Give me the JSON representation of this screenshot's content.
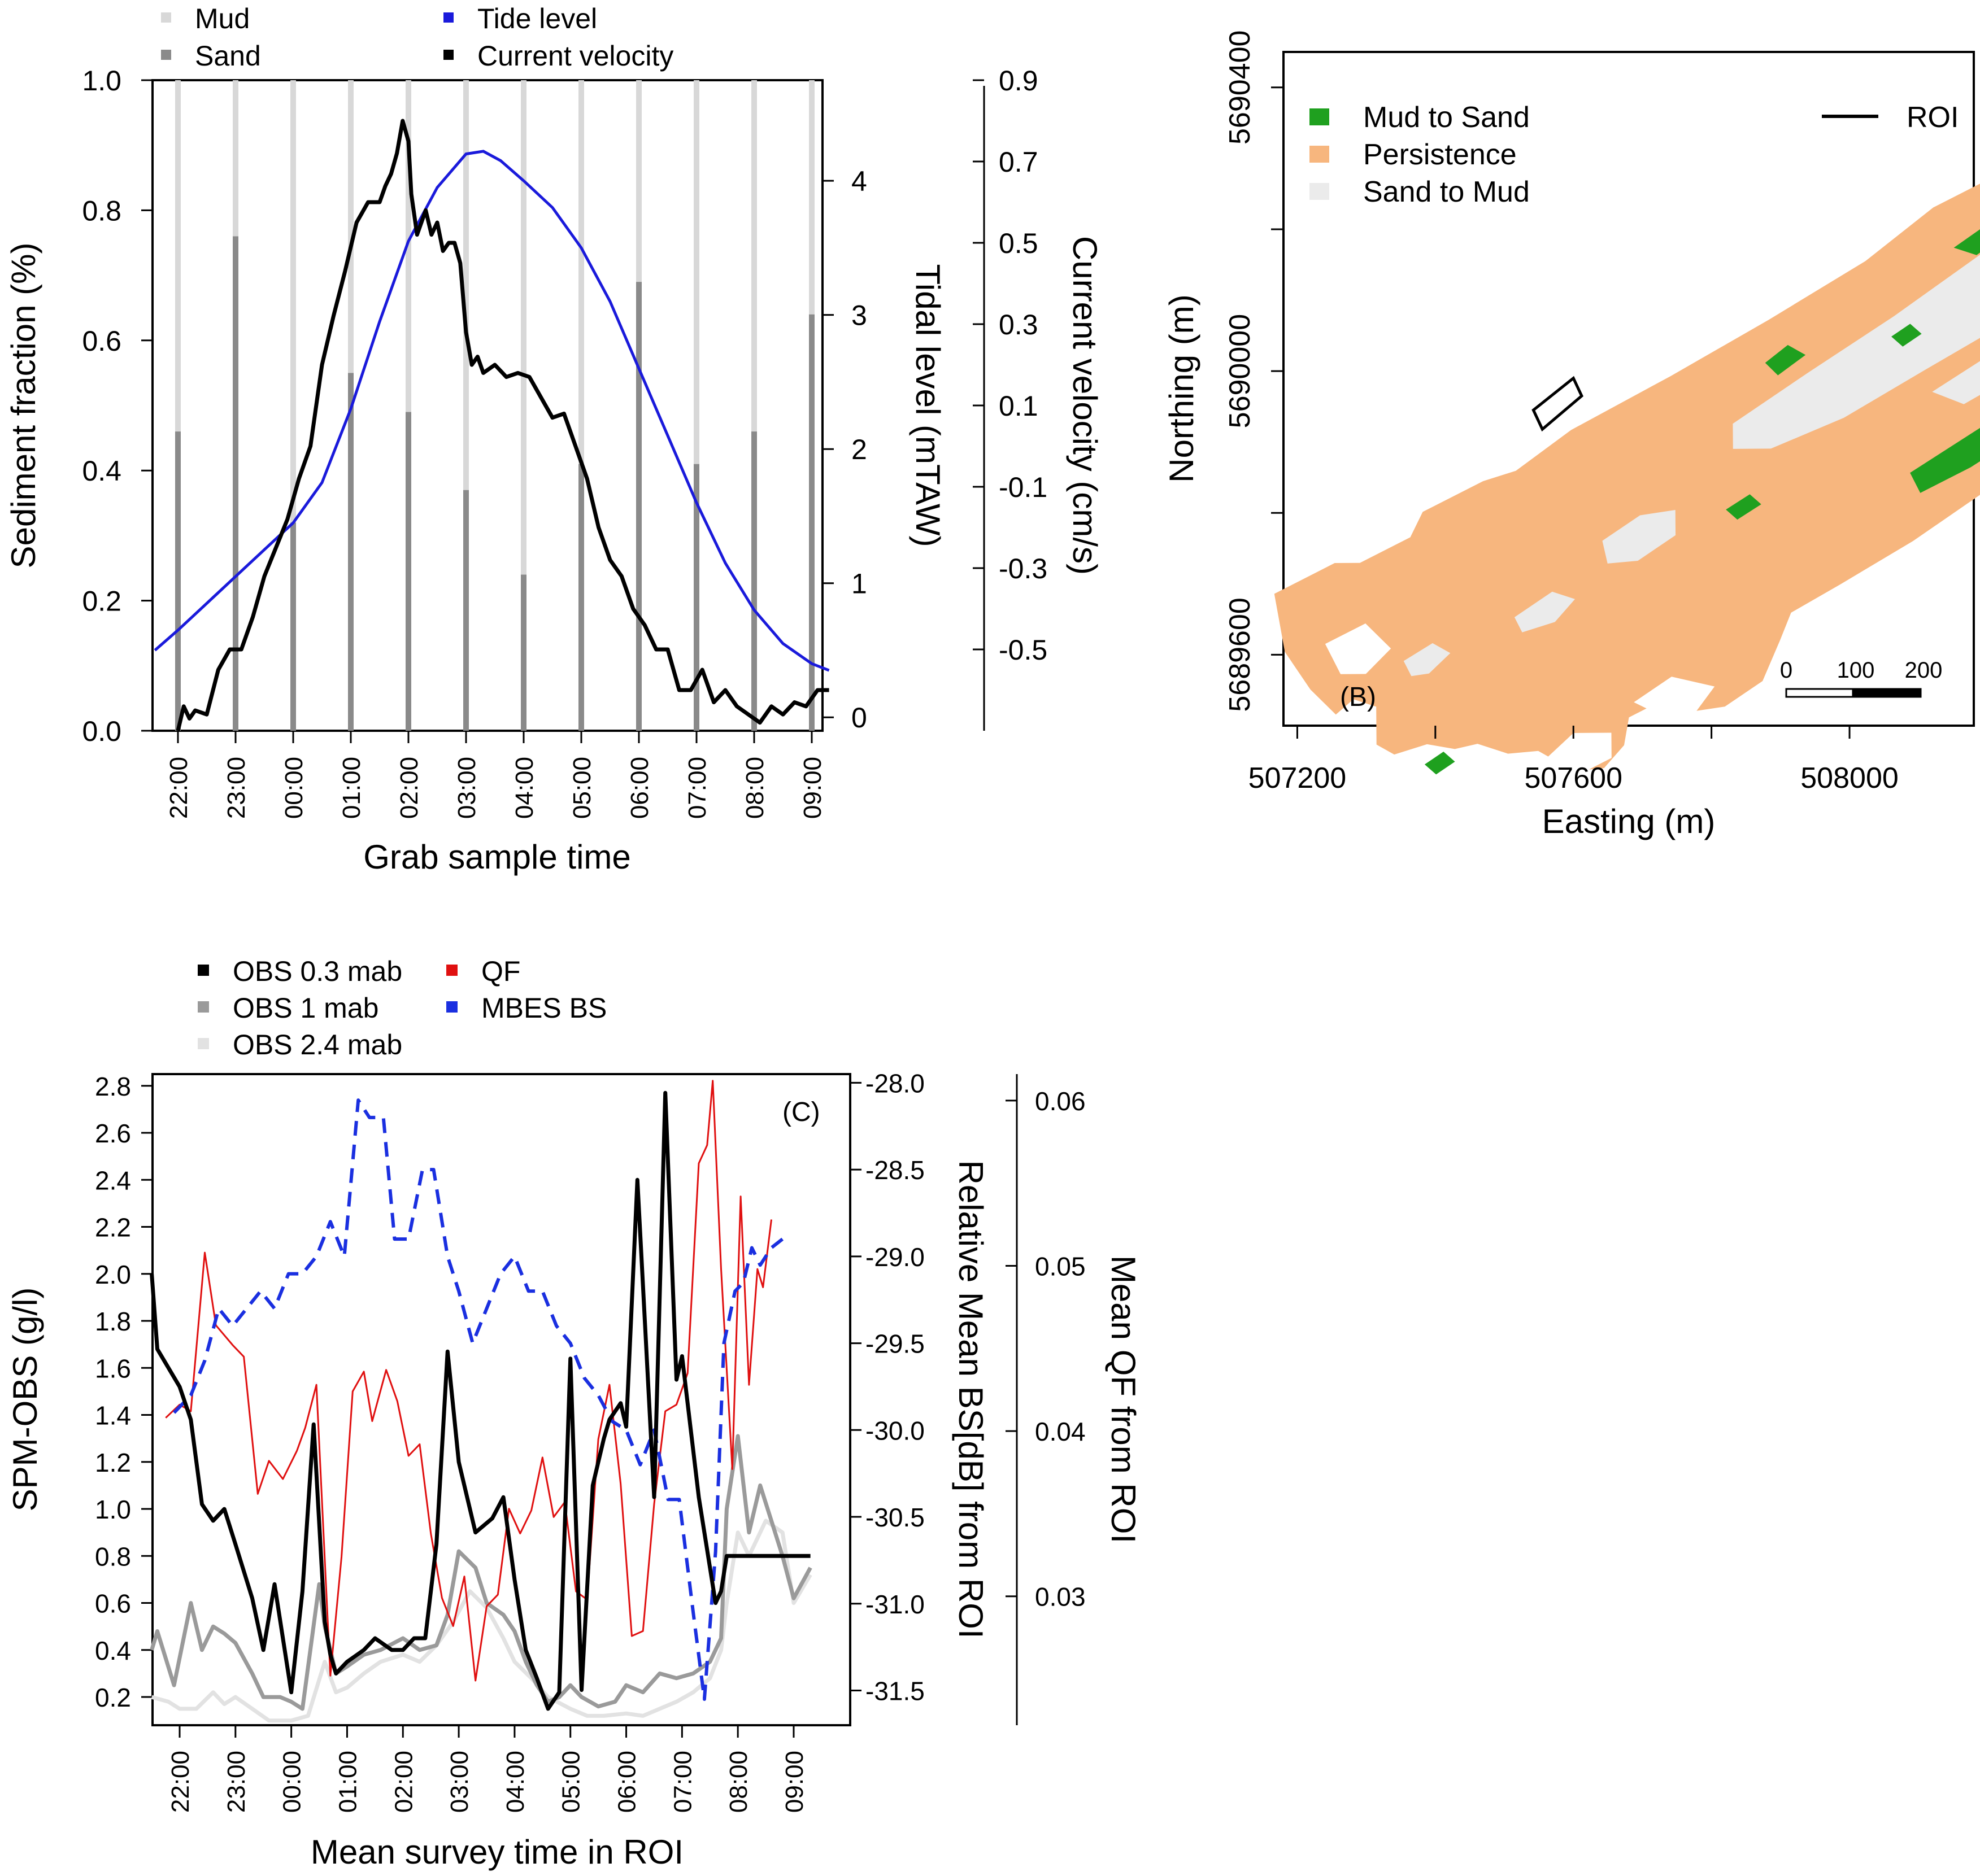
{
  "colors": {
    "mud": "#d8d8d8",
    "sand": "#8a8a8a",
    "tide": "#1a1adb",
    "current": "#000000",
    "mud_to_sand": "#1fa01f",
    "persistence": "#f7b67e",
    "sand_to_mud": "#ebebeb",
    "obs03": "#000000",
    "obs1": "#9a9a9a",
    "obs24": "#e2e2e2",
    "qf": "#e01010",
    "mbes": "#1a2fe0"
  },
  "chart_data": [
    {
      "id": "A",
      "type": "bar+line",
      "xlabel": "Grab sample time",
      "ylabel": "Sediment fraction (%)",
      "ylabel_tide": "Tidal level (mTAW)",
      "ylabel_current": "Current velocity (cm/s)",
      "x_ticks": [
        "22:00",
        "23:00",
        "00:00",
        "01:00",
        "02:00",
        "03:00",
        "04:00",
        "05:00",
        "06:00",
        "07:00",
        "08:00",
        "09:00"
      ],
      "y_ticks": [
        "0.0",
        "0.2",
        "0.4",
        "0.6",
        "0.8",
        "1.0"
      ],
      "tide_ticks": [
        "0",
        "1",
        "2",
        "3",
        "4"
      ],
      "current_ticks": [
        "-0.5",
        "-0.3",
        "-0.1",
        "0.1",
        "0.3",
        "0.5",
        "0.7",
        "0.9"
      ],
      "ylim": [
        0,
        1
      ],
      "tide_lim": [
        -0.1,
        4.75
      ],
      "current_lim": [
        -0.7,
        0.9
      ],
      "legend": [
        "Mud",
        "Sand",
        "Tide level",
        "Current velocity"
      ],
      "bar_times": [
        22.0,
        23.0,
        24.0,
        25.0,
        26.0,
        27.0,
        28.0,
        29.0,
        30.0,
        31.0,
        32.0,
        33.0
      ],
      "sand_fraction": [
        0.46,
        0.76,
        0.32,
        0.55,
        0.49,
        0.37,
        0.24,
        0.41,
        0.69,
        0.41,
        0.46,
        0.64
      ],
      "tide_level": {
        "t": [
          21.6,
          22.0,
          22.5,
          23.0,
          23.5,
          24.0,
          24.5,
          25.0,
          25.5,
          26.0,
          26.5,
          27.0,
          27.3,
          27.6,
          28.0,
          28.5,
          29.0,
          29.5,
          30.0,
          30.5,
          31.0,
          31.5,
          32.0,
          32.5,
          33.0,
          33.3
        ],
        "v": [
          0.5,
          0.65,
          0.85,
          1.05,
          1.25,
          1.45,
          1.75,
          2.3,
          2.95,
          3.55,
          3.95,
          4.2,
          4.22,
          4.15,
          4.0,
          3.8,
          3.5,
          3.1,
          2.6,
          2.1,
          1.6,
          1.15,
          0.8,
          0.55,
          0.4,
          0.35
        ]
      },
      "current_velocity": {
        "t": [
          22.0,
          22.1,
          22.2,
          22.3,
          22.5,
          22.7,
          22.9,
          23.1,
          23.3,
          23.5,
          23.7,
          23.9,
          24.1,
          24.3,
          24.5,
          24.7,
          24.9,
          25.1,
          25.3,
          25.5,
          25.6,
          25.7,
          25.8,
          25.9,
          26.0,
          26.05,
          26.15,
          26.3,
          26.4,
          26.5,
          26.6,
          26.7,
          26.8,
          26.9,
          27.0,
          27.1,
          27.2,
          27.3,
          27.5,
          27.7,
          27.9,
          28.1,
          28.3,
          28.5,
          28.7,
          28.9,
          29.1,
          29.3,
          29.5,
          29.7,
          29.9,
          30.1,
          30.3,
          30.5,
          30.7,
          30.9,
          31.1,
          31.3,
          31.5,
          31.7,
          31.9,
          32.1,
          32.3,
          32.5,
          32.7,
          32.9,
          33.1,
          33.3
        ],
        "v": [
          -0.7,
          -0.64,
          -0.67,
          -0.65,
          -0.66,
          -0.55,
          -0.5,
          -0.5,
          -0.42,
          -0.32,
          -0.25,
          -0.18,
          -0.08,
          0.0,
          0.2,
          0.32,
          0.43,
          0.55,
          0.6,
          0.6,
          0.64,
          0.67,
          0.72,
          0.8,
          0.75,
          0.62,
          0.52,
          0.58,
          0.52,
          0.55,
          0.48,
          0.5,
          0.5,
          0.45,
          0.28,
          0.2,
          0.22,
          0.18,
          0.2,
          0.17,
          0.18,
          0.17,
          0.12,
          0.07,
          0.08,
          0.0,
          -0.08,
          -0.2,
          -0.28,
          -0.32,
          -0.4,
          -0.44,
          -0.5,
          -0.5,
          -0.6,
          -0.6,
          -0.55,
          -0.63,
          -0.6,
          -0.64,
          -0.66,
          -0.68,
          -0.64,
          -0.66,
          -0.63,
          -0.64,
          -0.6,
          -0.6
        ]
      }
    },
    {
      "id": "B",
      "type": "map",
      "panel_label": "(B)",
      "xlabel": "Easting (m)",
      "ylabel": "Northing (m)",
      "x_ticks": [
        "507200",
        "507600",
        "508000"
      ],
      "y_ticks": [
        "5689600",
        "5690000",
        "5690400"
      ],
      "xlim": [
        507180,
        508180
      ],
      "ylim": [
        5689500,
        5690450
      ],
      "legend": [
        "Mud to Sand",
        "Persistence",
        "Sand to Mud"
      ],
      "roi_label": "ROI",
      "scalebar_labels": [
        "0",
        "100",
        "200"
      ],
      "roi_polygon": {
        "e": [
          507542,
          507600,
          507612,
          507555
        ],
        "n": [
          5689945,
          5689990,
          5689965,
          5689918
        ]
      }
    },
    {
      "id": "C",
      "type": "line",
      "panel_label": "(C)",
      "xlabel": "Mean survey time in ROI",
      "ylabel": "SPM-OBS (g/l)",
      "ylabel_bs": "Relative Mean BS[dB] from ROI",
      "ylabel_qf": "Mean QF from ROI",
      "x_ticks": [
        "22:00",
        "23:00",
        "00:00",
        "01:00",
        "02:00",
        "03:00",
        "04:00",
        "05:00",
        "06:00",
        "07:00",
        "08:00",
        "09:00"
      ],
      "y_ticks": [
        "0.2",
        "0.4",
        "0.6",
        "0.8",
        "1.0",
        "1.2",
        "1.4",
        "1.6",
        "1.8",
        "2.0",
        "2.2",
        "2.4",
        "2.6",
        "2.8"
      ],
      "bs_ticks": [
        "-28.0",
        "-28.5",
        "-29.0",
        "-29.5",
        "-30.0",
        "-30.5",
        "-31.0",
        "-31.5"
      ],
      "qf_ticks": [
        "0.03",
        "0.04",
        "0.05",
        "0.06"
      ],
      "ylim": [
        0.08,
        2.85
      ],
      "bs_lim": [
        -31.7,
        -27.95
      ],
      "qf_lim": [
        0.0222,
        0.0616
      ],
      "legend": [
        "OBS 0.3 mab",
        "QF",
        "OBS 1 mab",
        "MBES BS",
        "OBS 2.4 mab"
      ],
      "series": [
        {
          "name": "OBS 0.3 mab",
          "t": [
            21.5,
            21.6,
            22.0,
            22.2,
            22.4,
            22.6,
            22.8,
            23.0,
            23.3,
            23.5,
            23.7,
            24.0,
            24.2,
            24.4,
            24.6,
            24.7,
            24.8,
            25.0,
            25.3,
            25.5,
            25.8,
            26.0,
            26.2,
            26.4,
            26.6,
            26.8,
            27.0,
            27.3,
            27.6,
            27.8,
            28.0,
            28.2,
            28.4,
            28.6,
            28.8,
            29.0,
            29.2,
            29.4,
            29.6,
            29.7,
            29.9,
            30.0,
            30.2,
            30.5,
            30.7,
            30.9,
            31.0,
            31.1,
            31.3,
            31.4,
            31.5,
            31.6,
            31.7,
            31.8,
            32.0,
            32.2,
            32.4,
            32.6,
            32.8,
            33.0,
            33.3
          ],
          "v": [
            2.0,
            1.68,
            1.52,
            1.38,
            1.02,
            0.95,
            1.0,
            0.85,
            0.62,
            0.4,
            0.68,
            0.22,
            0.65,
            1.36,
            0.52,
            0.38,
            0.3,
            0.35,
            0.4,
            0.45,
            0.4,
            0.4,
            0.45,
            0.45,
            0.85,
            1.67,
            1.2,
            0.9,
            0.96,
            1.05,
            0.7,
            0.4,
            0.28,
            0.15,
            0.22,
            1.64,
            0.23,
            1.1,
            1.3,
            1.38,
            1.45,
            1.35,
            2.4,
            1.05,
            2.77,
            1.55,
            1.65,
            1.45,
            1.05,
            0.9,
            0.75,
            0.6,
            0.65,
            0.8,
            0.8,
            0.8,
            0.8,
            0.8,
            0.8,
            0.8,
            0.8
          ]
        },
        {
          "name": "OBS 1 mab",
          "t": [
            21.5,
            21.6,
            21.9,
            22.2,
            22.4,
            22.6,
            22.8,
            23.0,
            23.3,
            23.5,
            23.8,
            24.0,
            24.2,
            24.5,
            24.6,
            24.8,
            25.0,
            25.3,
            25.6,
            26.0,
            26.3,
            26.6,
            26.8,
            27.0,
            27.3,
            27.5,
            27.8,
            28.0,
            28.2,
            28.4,
            28.6,
            28.8,
            29.0,
            29.2,
            29.5,
            29.8,
            30.0,
            30.3,
            30.6,
            30.9,
            31.2,
            31.5,
            31.7,
            31.8,
            32.0,
            32.2,
            32.4,
            32.6,
            32.8,
            33.0,
            33.3
          ],
          "v": [
            0.4,
            0.48,
            0.25,
            0.6,
            0.4,
            0.5,
            0.47,
            0.43,
            0.3,
            0.2,
            0.2,
            0.18,
            0.15,
            0.68,
            0.5,
            0.3,
            0.33,
            0.38,
            0.4,
            0.45,
            0.4,
            0.42,
            0.55,
            0.82,
            0.75,
            0.6,
            0.55,
            0.48,
            0.35,
            0.25,
            0.18,
            0.2,
            0.25,
            0.2,
            0.16,
            0.18,
            0.25,
            0.22,
            0.3,
            0.28,
            0.3,
            0.35,
            0.45,
            1.0,
            1.31,
            0.9,
            1.1,
            0.95,
            0.8,
            0.62,
            0.75
          ]
        },
        {
          "name": "OBS 2.4 mab",
          "t": [
            21.5,
            21.8,
            22.0,
            22.3,
            22.6,
            22.8,
            23.0,
            23.3,
            23.6,
            24.0,
            24.3,
            24.6,
            24.8,
            25.0,
            25.3,
            25.6,
            26.0,
            26.3,
            26.6,
            26.9,
            27.2,
            27.5,
            27.8,
            28.0,
            28.3,
            28.6,
            29.0,
            29.3,
            29.6,
            30.0,
            30.3,
            30.6,
            30.9,
            31.2,
            31.5,
            31.7,
            31.8,
            32.0,
            32.2,
            32.5,
            32.8,
            33.0,
            33.3
          ],
          "v": [
            0.2,
            0.18,
            0.15,
            0.15,
            0.22,
            0.17,
            0.2,
            0.15,
            0.1,
            0.1,
            0.12,
            0.35,
            0.22,
            0.24,
            0.3,
            0.35,
            0.38,
            0.35,
            0.42,
            0.52,
            0.65,
            0.58,
            0.45,
            0.35,
            0.28,
            0.2,
            0.15,
            0.12,
            0.12,
            0.13,
            0.12,
            0.15,
            0.18,
            0.22,
            0.28,
            0.4,
            0.6,
            0.9,
            0.8,
            0.95,
            0.9,
            0.6,
            0.72
          ]
        },
        {
          "name": "QF",
          "t": [
            21.75,
            22.0,
            22.2,
            22.45,
            22.65,
            22.95,
            23.15,
            23.4,
            23.6,
            23.85,
            24.1,
            24.25,
            24.45,
            24.7,
            24.9,
            25.1,
            25.3,
            25.45,
            25.7,
            25.9,
            26.1,
            26.3,
            26.5,
            26.7,
            26.9,
            27.1,
            27.3,
            27.5,
            27.7,
            27.9,
            28.1,
            28.3,
            28.5,
            28.7,
            28.9,
            29.1,
            29.3,
            29.5,
            29.7,
            29.9,
            30.1,
            30.3,
            30.5,
            30.7,
            30.9,
            31.1,
            31.3,
            31.45,
            31.55,
            31.7,
            31.9,
            32.05,
            32.2,
            32.35,
            32.45,
            32.6
          ],
          "v": [
            0.0408,
            0.0416,
            0.0412,
            0.0508,
            0.0464,
            0.0452,
            0.0445,
            0.0362,
            0.0382,
            0.0371,
            0.0388,
            0.0402,
            0.0428,
            0.0252,
            0.0324,
            0.0424,
            0.0436,
            0.0406,
            0.0437,
            0.0418,
            0.0385,
            0.0392,
            0.0338,
            0.0299,
            0.0282,
            0.0312,
            0.0249,
            0.0294,
            0.0301,
            0.0353,
            0.0338,
            0.0352,
            0.0384,
            0.0348,
            0.0357,
            0.0303,
            0.0298,
            0.0395,
            0.0428,
            0.0368,
            0.0276,
            0.0279,
            0.0356,
            0.0412,
            0.0416,
            0.0435,
            0.0562,
            0.0573,
            0.0612,
            0.0498,
            0.0377,
            0.0542,
            0.0428,
            0.0498,
            0.0487,
            0.0528
          ]
        },
        {
          "name": "MBES BS",
          "t": [
            21.9,
            22.2,
            22.45,
            22.7,
            22.95,
            23.2,
            23.45,
            23.7,
            23.95,
            24.2,
            24.45,
            24.7,
            24.95,
            25.2,
            25.4,
            25.65,
            25.85,
            26.1,
            26.35,
            26.55,
            26.8,
            27.0,
            27.25,
            27.5,
            27.75,
            28.0,
            28.25,
            28.5,
            28.75,
            29.0,
            29.25,
            29.5,
            29.75,
            30.0,
            30.25,
            30.5,
            30.75,
            30.95,
            31.2,
            31.4,
            31.6,
            31.75,
            31.95,
            32.1,
            32.25,
            32.4,
            32.6,
            32.8
          ],
          "v": [
            -29.9,
            -29.8,
            -29.6,
            -29.3,
            -29.4,
            -29.3,
            -29.2,
            -29.3,
            -29.1,
            -29.1,
            -29.0,
            -28.8,
            -29.0,
            -28.1,
            -28.2,
            -28.2,
            -28.9,
            -28.9,
            -28.5,
            -28.5,
            -29.0,
            -29.2,
            -29.5,
            -29.3,
            -29.1,
            -29.0,
            -29.2,
            -29.2,
            -29.4,
            -29.5,
            -29.7,
            -29.8,
            -29.95,
            -30.0,
            -30.2,
            -30.0,
            -30.4,
            -30.4,
            -31.05,
            -31.55,
            -30.7,
            -29.5,
            -29.2,
            -29.15,
            -28.95,
            -29.05,
            -28.95,
            -28.9
          ]
        }
      ]
    }
  ]
}
